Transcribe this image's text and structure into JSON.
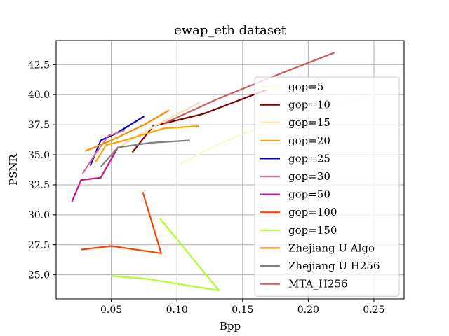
{
  "chart_data": {
    "type": "line",
    "title": "ewap_eth dataset",
    "xlabel": "Bpp",
    "ylabel": "PSNR",
    "xlim": [
      0.008,
      0.273
    ],
    "ylim": [
      23.0,
      44.5
    ],
    "xticks": [
      0.05,
      0.1,
      0.15,
      0.2,
      0.25
    ],
    "xtick_labels": [
      "0.05",
      "0.10",
      "0.15",
      "0.20",
      "0.25"
    ],
    "yticks": [
      25.0,
      27.5,
      30.0,
      32.5,
      35.0,
      37.5,
      40.0,
      42.5
    ],
    "ytick_labels": [
      "25.0",
      "27.5",
      "30.0",
      "32.5",
      "35.0",
      "37.5",
      "40.0",
      "42.5"
    ],
    "grid": true,
    "legend_position": "right",
    "series": [
      {
        "name": "gop=5",
        "color": "#fafad2",
        "x": [
          0.102,
          0.13,
          0.17,
          0.25
        ],
        "y": [
          34.2,
          35.8,
          37.6,
          40.0
        ]
      },
      {
        "name": "gop=10",
        "color": "#800000",
        "x": [
          0.066,
          0.082,
          0.12,
          0.168
        ],
        "y": [
          35.2,
          37.4,
          38.4,
          40.4
        ]
      },
      {
        "name": "gop=15",
        "color": "#ffdead",
        "x": [
          0.05,
          0.067,
          0.085,
          0.118
        ],
        "y": [
          35.2,
          36.4,
          37.5,
          39.4
        ]
      },
      {
        "name": "gop=20",
        "color": "#ffa500",
        "x": [
          0.038,
          0.046,
          0.06,
          0.09,
          0.117
        ],
        "y": [
          34.4,
          35.8,
          36.2,
          37.2,
          37.4
        ]
      },
      {
        "name": "gop=25",
        "color": "#0000cd",
        "x": [
          0.034,
          0.042,
          0.054,
          0.063,
          0.075
        ],
        "y": [
          34.1,
          36.2,
          36.8,
          37.4,
          38.2
        ]
      },
      {
        "name": "gop=30",
        "color": "#db7093",
        "x": [
          0.028,
          0.038,
          0.048,
          0.06
        ],
        "y": [
          33.4,
          35.1,
          36.6,
          37.0
        ]
      },
      {
        "name": "gop=50",
        "color": "#c71585",
        "x": [
          0.02,
          0.027,
          0.042,
          0.055
        ],
        "y": [
          31.1,
          32.9,
          33.1,
          35.6
        ]
      },
      {
        "name": "gop=100",
        "color": "#ff4500",
        "x": [
          0.074,
          0.088,
          0.05,
          0.027
        ],
        "y": [
          31.9,
          26.8,
          27.4,
          27.1
        ]
      },
      {
        "name": "gop=150",
        "color": "#adff2f",
        "x": [
          0.087,
          0.132,
          0.075,
          0.05
        ],
        "y": [
          29.7,
          23.7,
          24.7,
          24.9
        ]
      },
      {
        "name": "Zhejiang U Algo",
        "color": "#ff8c00",
        "x": [
          0.03,
          0.05,
          0.075,
          0.094
        ],
        "y": [
          35.3,
          36.2,
          37.5,
          38.7
        ]
      },
      {
        "name": "Zhejiang U H256",
        "color": "#808080",
        "x": [
          0.042,
          0.055,
          0.08,
          0.11
        ],
        "y": [
          34.0,
          35.6,
          36.0,
          36.2
        ]
      },
      {
        "name": "MTA_H256",
        "color": "#cd5c5c",
        "x": [
          0.09,
          0.13,
          0.18,
          0.22
        ],
        "y": [
          37.6,
          39.6,
          41.8,
          43.5
        ]
      }
    ]
  }
}
